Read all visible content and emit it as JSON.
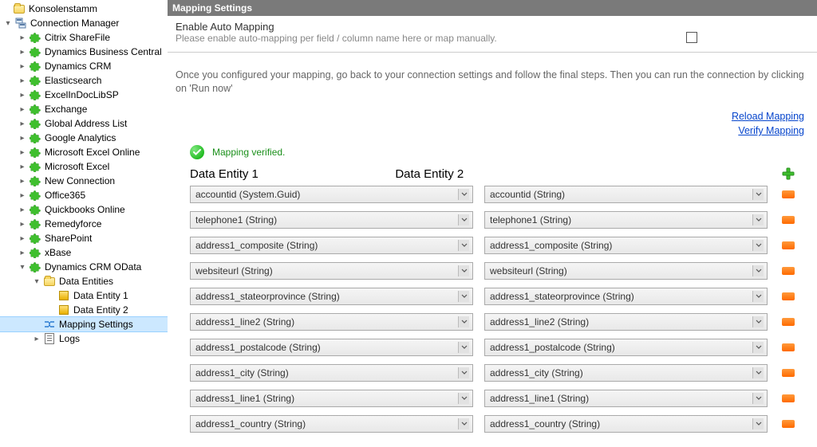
{
  "tree": {
    "root_label": "Konsolenstamm",
    "manager_label": "Connection Manager",
    "connections": [
      "Citrix ShareFile",
      "Dynamics Business Central",
      "Dynamics CRM",
      "Elasticsearch",
      "ExcelInDocLibSP",
      "Exchange",
      "Global Address List",
      "Google Analytics",
      "Microsoft Excel Online",
      "Microsoft Excel",
      "New Connection",
      "Office365",
      "Quickbooks Online",
      "Remedyforce",
      "SharePoint",
      "xBase"
    ],
    "open_connection": "Dynamics CRM OData",
    "data_entities_label": "Data Entities",
    "entity1_label": "Data Entity 1",
    "entity2_label": "Data Entity 2",
    "mapping_settings_label": "Mapping Settings",
    "logs_label": "Logs"
  },
  "panel": {
    "header": "Mapping Settings",
    "enable_title": "Enable Auto Mapping",
    "enable_sub": "Please enable auto-mapping per field / column name here or map manually.",
    "instructions": "Once you configured your mapping, go back to your connection settings and follow the final steps. Then you can run the connection by clicking on 'Run now'",
    "link_reload": "Reload Mapping",
    "link_verify": "Verify Mapping",
    "verified_text": "Mapping verified.",
    "col1": "Data Entity 1",
    "col2": "Data Entity 2",
    "rows": [
      {
        "a": "accountid (System.Guid)",
        "b": "accountid (String)"
      },
      {
        "a": "telephone1 (String)",
        "b": "telephone1 (String)"
      },
      {
        "a": "address1_composite (String)",
        "b": "address1_composite (String)"
      },
      {
        "a": "websiteurl (String)",
        "b": "websiteurl (String)"
      },
      {
        "a": "address1_stateorprovince (String)",
        "b": "address1_stateorprovince (String)"
      },
      {
        "a": "address1_line2 (String)",
        "b": "address1_line2 (String)"
      },
      {
        "a": "address1_postalcode (String)",
        "b": "address1_postalcode (String)"
      },
      {
        "a": "address1_city (String)",
        "b": "address1_city (String)"
      },
      {
        "a": "address1_line1 (String)",
        "b": "address1_line1 (String)"
      },
      {
        "a": "address1_country (String)",
        "b": "address1_country (String)"
      }
    ]
  },
  "colors": {
    "puzzle": "#3fbf2e",
    "header_bg": "#7a7a7a",
    "link": "#0645cc",
    "verified": "#1a8f1a",
    "selected_bg": "#cce8ff"
  }
}
